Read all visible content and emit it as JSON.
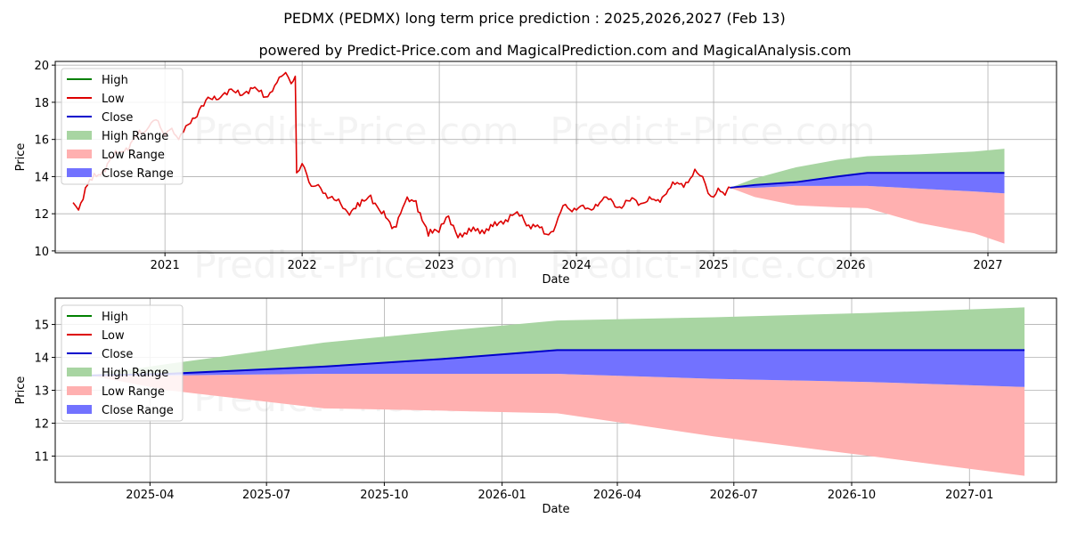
{
  "title": "PEDMX (PEDMX) long term price prediction : 2025,2026,2027 (Feb 13)",
  "subtitle": "powered by Predict-Price.com and MagicalPrediction.com and MagicalAnalysis.com",
  "watermark": "Predict-Price.com",
  "colors": {
    "high": "#008000",
    "low": "#dd0000",
    "close": "#0000cc",
    "high_range": "#a8d5a2",
    "low_range": "#ffb0b0",
    "close_range": "#7272ff",
    "grid": "#b0b0b0"
  },
  "chart_data": [
    {
      "type": "line",
      "xlabel": "Date",
      "ylabel": "Price",
      "xlim": [
        2020.2,
        2027.5
      ],
      "ylim": [
        9.9,
        20.2
      ],
      "xticks": [
        {
          "value": 2021,
          "label": "2021"
        },
        {
          "value": 2022,
          "label": "2022"
        },
        {
          "value": 2023,
          "label": "2023"
        },
        {
          "value": 2024,
          "label": "2024"
        },
        {
          "value": 2025,
          "label": "2025"
        },
        {
          "value": 2026,
          "label": "2026"
        },
        {
          "value": 2027,
          "label": "2027"
        }
      ],
      "yticks": [
        {
          "value": 10,
          "label": "10"
        },
        {
          "value": 12,
          "label": "12"
        },
        {
          "value": 14,
          "label": "14"
        },
        {
          "value": 16,
          "label": "16"
        },
        {
          "value": 18,
          "label": "18"
        },
        {
          "value": 20,
          "label": "20"
        }
      ],
      "grid": true,
      "legend_position": "top-left",
      "legend": [
        "High",
        "Low",
        "Close",
        "High Range",
        "Low Range",
        "Close Range"
      ],
      "history": {
        "name": "Low",
        "x": [
          2020.33,
          2020.37,
          2020.42,
          2020.5,
          2020.58,
          2020.67,
          2020.75,
          2020.83,
          2020.9,
          2020.95,
          2021.0,
          2021.05,
          2021.1,
          2021.17,
          2021.25,
          2021.33,
          2021.42,
          2021.5,
          2021.58,
          2021.67,
          2021.75,
          2021.8,
          2021.85,
          2021.88,
          2021.92,
          2021.95,
          2021.96,
          2022.0,
          2022.05,
          2022.1,
          2022.17,
          2022.25,
          2022.33,
          2022.42,
          2022.5,
          2022.58,
          2022.67,
          2022.75,
          2022.83,
          2022.92,
          2022.98,
          2023.05,
          2023.12,
          2023.2,
          2023.28,
          2023.36,
          2023.45,
          2023.55,
          2023.62,
          2023.7,
          2023.78,
          2023.85,
          2023.92,
          2024.0,
          2024.08,
          2024.17,
          2024.25,
          2024.33,
          2024.42,
          2024.5,
          2024.58,
          2024.67,
          2024.75,
          2024.83,
          2024.88,
          2024.92,
          2024.96,
          2025.0,
          2025.05,
          2025.1,
          2025.12
        ],
        "y": [
          12.6,
          12.2,
          13.4,
          14.0,
          14.7,
          15.3,
          15.8,
          16.3,
          16.9,
          17.0,
          16.2,
          16.6,
          16.0,
          16.8,
          17.6,
          18.2,
          18.4,
          18.6,
          18.5,
          18.7,
          18.3,
          18.9,
          19.4,
          19.6,
          19.0,
          19.4,
          14.2,
          14.7,
          13.7,
          13.5,
          13.1,
          12.7,
          12.1,
          12.4,
          13.0,
          12.0,
          11.3,
          12.6,
          12.7,
          10.8,
          11.1,
          11.8,
          11.0,
          10.9,
          11.2,
          11.1,
          11.6,
          12.0,
          11.6,
          11.3,
          10.9,
          11.4,
          12.5,
          12.2,
          12.3,
          12.6,
          12.8,
          12.3,
          12.8,
          12.6,
          12.7,
          13.3,
          13.6,
          13.9,
          14.2,
          14.0,
          13.1,
          12.9,
          13.2,
          13.3,
          13.4
        ]
      },
      "forecast": {
        "x": [
          2025.12,
          2025.3,
          2025.6,
          2025.9,
          2026.12,
          2026.5,
          2026.9,
          2027.12
        ],
        "high_range_upper": [
          13.4,
          13.9,
          14.5,
          14.9,
          15.1,
          15.2,
          15.35,
          15.5
        ],
        "close": [
          13.4,
          13.55,
          13.7,
          14.0,
          14.2,
          14.2,
          14.2,
          14.2
        ],
        "close_range_lower": [
          13.4,
          13.4,
          13.5,
          13.5,
          13.5,
          13.35,
          13.2,
          13.1
        ],
        "low_range_lower": [
          13.4,
          12.9,
          12.45,
          12.35,
          12.3,
          11.5,
          10.95,
          10.4
        ]
      }
    },
    {
      "type": "line",
      "xlabel": "Date",
      "ylabel": "Price",
      "xlim": [
        "2025-01-17",
        "2027-03-10"
      ],
      "ylim": [
        10.2,
        15.8
      ],
      "xticks": [
        {
          "value": "2025-04-01",
          "label": "2025-04"
        },
        {
          "value": "2025-07-01",
          "label": "2025-07"
        },
        {
          "value": "2025-10-01",
          "label": "2025-10"
        },
        {
          "value": "2026-01-01",
          "label": "2026-01"
        },
        {
          "value": "2026-04-01",
          "label": "2026-04"
        },
        {
          "value": "2026-07-01",
          "label": "2026-07"
        },
        {
          "value": "2026-10-01",
          "label": "2026-10"
        },
        {
          "value": "2027-01-01",
          "label": "2027-01"
        }
      ],
      "yticks": [
        {
          "value": 11,
          "label": "11"
        },
        {
          "value": 12,
          "label": "12"
        },
        {
          "value": 13,
          "label": "13"
        },
        {
          "value": 14,
          "label": "14"
        },
        {
          "value": 15,
          "label": "15"
        }
      ],
      "grid": true,
      "legend_position": "top-left",
      "legend": [
        "High",
        "Low",
        "Close",
        "High Range",
        "Low Range",
        "Close Range"
      ],
      "forecast": {
        "x": [
          "2025-02-13",
          "2025-04-15",
          "2025-08-15",
          "2025-11-15",
          "2026-02-13",
          "2026-06-15",
          "2026-10-15",
          "2027-02-13"
        ],
        "high_range_upper": [
          13.45,
          13.8,
          14.45,
          14.8,
          15.12,
          15.22,
          15.35,
          15.52
        ],
        "close": [
          13.45,
          13.5,
          13.72,
          13.95,
          14.22,
          14.22,
          14.22,
          14.22
        ],
        "close_range_lower": [
          13.45,
          13.45,
          13.5,
          13.5,
          13.5,
          13.35,
          13.25,
          13.1
        ],
        "low_range_lower": [
          13.45,
          13.0,
          12.45,
          12.38,
          12.3,
          11.6,
          11.0,
          10.4
        ]
      }
    }
  ]
}
